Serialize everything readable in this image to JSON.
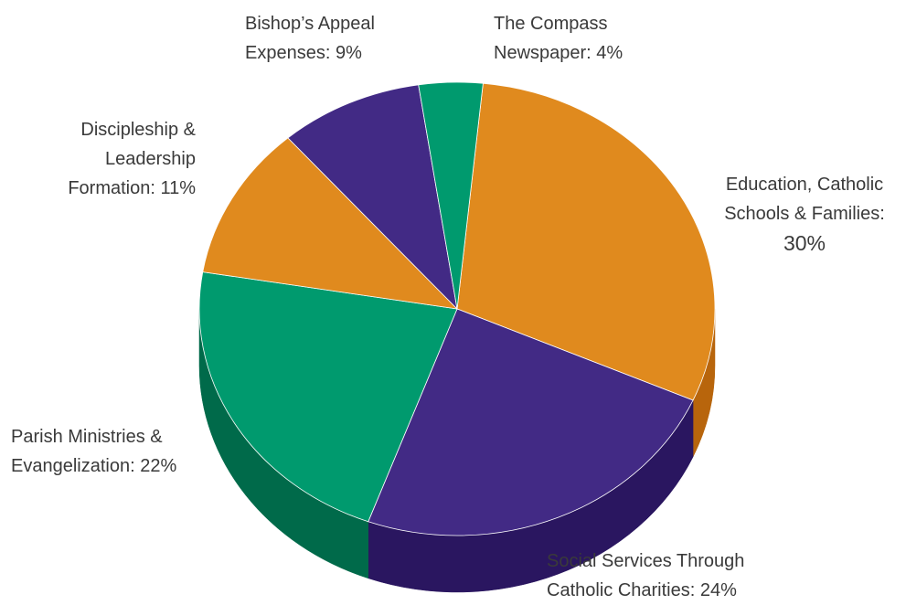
{
  "chart_data": {
    "type": "pie",
    "style": "3d",
    "slices": [
      {
        "label": "Education, Catholic Schools & Families",
        "value": 30,
        "color": "#e08a1e",
        "side": "#b8650c"
      },
      {
        "label": "Social Services Through Catholic Charities",
        "value": 24,
        "color": "#422a85",
        "side": "#2a1660"
      },
      {
        "label": "Parish Ministries & Evangelization",
        "value": 22,
        "color": "#009a6e",
        "side": "#006a4a"
      },
      {
        "label": "Discipleship & Leadership Formation",
        "value": 11,
        "color": "#e08a1e",
        "side": "#b8650c"
      },
      {
        "label": "Bishop's Appeal Expenses",
        "value": 9,
        "color": "#422a85",
        "side": "#2a1660"
      },
      {
        "label": "The Compass Newspaper",
        "value": 4,
        "color": "#009a6e",
        "side": "#006a4a"
      }
    ]
  },
  "labels": {
    "bishops": {
      "line1": "Bishop’s Appeal",
      "line2": "Expenses: 9%"
    },
    "compass": {
      "line1": "The Compass",
      "line2": "Newspaper: 4%"
    },
    "discipleship": {
      "line1": "Discipleship &",
      "line2": "Leadership",
      "line3": "Formation: 11%"
    },
    "education": {
      "line1": "Education, Catholic",
      "line2": "Schools & Families:",
      "line3": "30%"
    },
    "parish": {
      "line1": "Parish Ministries &",
      "line2": "Evangelization: 22%"
    },
    "social": {
      "line1": "Social Services Through",
      "line2": "Catholic Charities: 24%"
    }
  }
}
